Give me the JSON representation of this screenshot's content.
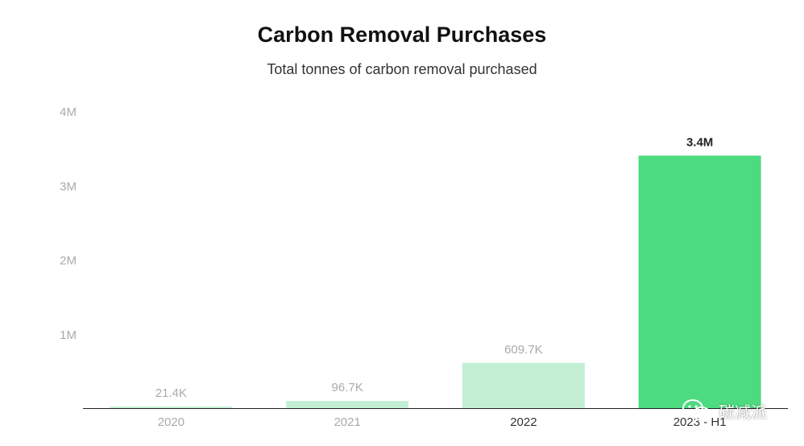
{
  "chart_data": {
    "type": "bar",
    "title": "Carbon Removal Purchases",
    "subtitle": "Total tonnes of carbon removal purchased",
    "categories": [
      "2020",
      "2021",
      "2022",
      "2023 - H1"
    ],
    "values": [
      21400,
      96700,
      609700,
      3400000
    ],
    "data_labels": [
      "21.4K",
      "96.7K",
      "609.7K",
      "3.4M"
    ],
    "ylim": [
      0,
      4000000
    ],
    "yticks": [
      {
        "value": 1000000,
        "label": "1M"
      },
      {
        "value": 2000000,
        "label": "2M"
      },
      {
        "value": 3000000,
        "label": "3M"
      },
      {
        "value": 4000000,
        "label": "4M"
      }
    ],
    "grid": false,
    "xlabel": "",
    "ylabel": "",
    "highlighted_category": "2023 - H1",
    "colors": {
      "bar": "#c3f0d4",
      "bar_highlight": "#4cdb80",
      "label": "#aaaaaa",
      "label_highlight": "#222222",
      "axis": "#222222",
      "tick": "#aaaaaa"
    }
  },
  "watermark": {
    "text": "碳减派",
    "icon": "wechat-icon"
  }
}
